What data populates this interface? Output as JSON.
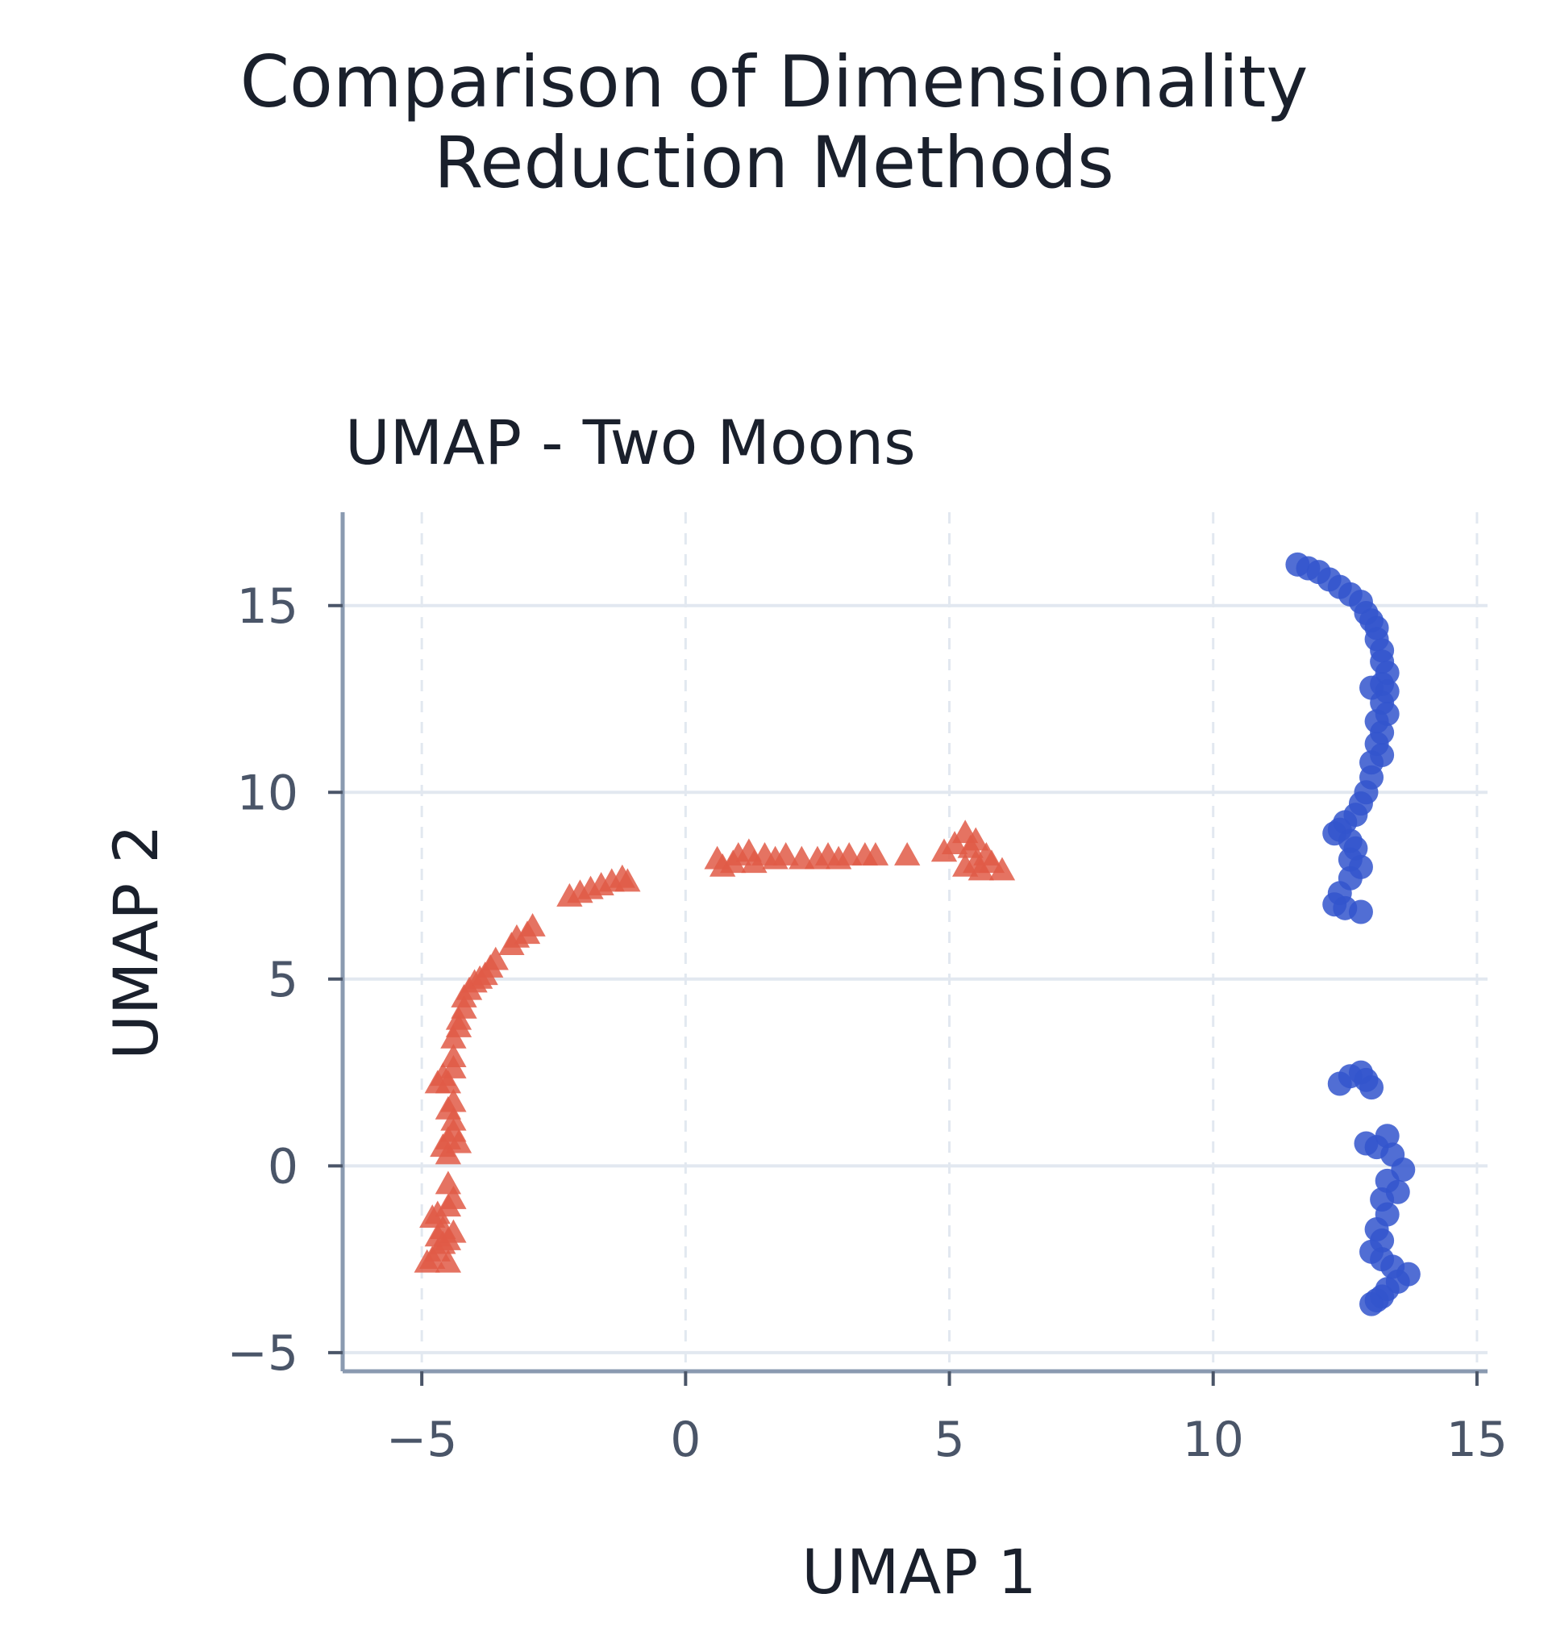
{
  "figure": {
    "title_line1": "Comparison of Dimensionality",
    "title_line2": "Reduction Methods"
  },
  "chart_data": {
    "type": "scatter",
    "title": "UMAP - Two Moons",
    "xlabel": "UMAP 1",
    "ylabel": "UMAP 2",
    "xlim": [
      -6.5,
      15.2
    ],
    "ylim": [
      -5.5,
      17.5
    ],
    "xticks": [
      -5,
      0,
      5,
      10,
      15
    ],
    "yticks": [
      -5,
      0,
      5,
      10,
      15
    ],
    "xtick_labels": [
      "−5",
      "0",
      "5",
      "10",
      "15"
    ],
    "ytick_labels": [
      "−5",
      "0",
      "5",
      "10",
      "15"
    ],
    "grid": true,
    "series": [
      {
        "marker": "triangle",
        "color": "#e05a47",
        "points": [
          [
            -4.9,
            -2.6
          ],
          [
            -4.8,
            -2.5
          ],
          [
            -4.7,
            -2.3
          ],
          [
            -4.6,
            -2.1
          ],
          [
            -4.5,
            -2.6
          ],
          [
            -4.7,
            -1.9
          ],
          [
            -4.6,
            -1.7
          ],
          [
            -4.5,
            -2.0
          ],
          [
            -4.4,
            -1.8
          ],
          [
            -4.8,
            -1.4
          ],
          [
            -4.7,
            -1.3
          ],
          [
            -4.5,
            -1.1
          ],
          [
            -4.4,
            -0.9
          ],
          [
            -4.5,
            -0.5
          ],
          [
            -4.5,
            0.3
          ],
          [
            -4.6,
            0.5
          ],
          [
            -4.5,
            0.7
          ],
          [
            -4.4,
            0.9
          ],
          [
            -4.3,
            0.6
          ],
          [
            -4.4,
            1.2
          ],
          [
            -4.5,
            1.5
          ],
          [
            -4.4,
            1.7
          ],
          [
            -4.7,
            2.2
          ],
          [
            -4.6,
            2.4
          ],
          [
            -4.5,
            2.2
          ],
          [
            -4.4,
            2.6
          ],
          [
            -4.4,
            2.9
          ],
          [
            -4.4,
            3.4
          ],
          [
            -4.3,
            3.7
          ],
          [
            -4.3,
            3.9
          ],
          [
            -4.2,
            4.2
          ],
          [
            -4.2,
            4.5
          ],
          [
            -4.1,
            4.7
          ],
          [
            -4.0,
            4.9
          ],
          [
            -3.9,
            5.0
          ],
          [
            -3.8,
            5.1
          ],
          [
            -3.7,
            5.3
          ],
          [
            -3.6,
            5.5
          ],
          [
            -3.3,
            5.9
          ],
          [
            -3.2,
            6.1
          ],
          [
            -3.0,
            6.2
          ],
          [
            -2.9,
            6.4
          ],
          [
            -2.2,
            7.2
          ],
          [
            -2.0,
            7.3
          ],
          [
            -1.8,
            7.4
          ],
          [
            -1.6,
            7.5
          ],
          [
            -1.4,
            7.6
          ],
          [
            -1.2,
            7.7
          ],
          [
            -1.1,
            7.6
          ],
          [
            0.6,
            8.2
          ],
          [
            0.7,
            8.0
          ],
          [
            0.9,
            8.1
          ],
          [
            1.0,
            8.3
          ],
          [
            1.2,
            8.4
          ],
          [
            1.3,
            8.1
          ],
          [
            1.5,
            8.3
          ],
          [
            1.7,
            8.2
          ],
          [
            1.9,
            8.3
          ],
          [
            2.2,
            8.2
          ],
          [
            2.5,
            8.2
          ],
          [
            2.7,
            8.3
          ],
          [
            2.9,
            8.2
          ],
          [
            3.1,
            8.3
          ],
          [
            3.4,
            8.3
          ],
          [
            3.6,
            8.3
          ],
          [
            4.2,
            8.3
          ],
          [
            4.9,
            8.4
          ],
          [
            5.1,
            8.6
          ],
          [
            5.3,
            8.9
          ],
          [
            5.4,
            8.5
          ],
          [
            5.5,
            8.7
          ],
          [
            5.3,
            8.0
          ],
          [
            5.6,
            7.9
          ],
          [
            5.8,
            8.1
          ],
          [
            6.0,
            7.9
          ],
          [
            5.7,
            8.3
          ],
          [
            5.5,
            8.1
          ]
        ]
      },
      {
        "marker": "circle",
        "color": "#3355cc",
        "points": [
          [
            11.6,
            16.1
          ],
          [
            11.8,
            16.0
          ],
          [
            12.0,
            15.9
          ],
          [
            12.2,
            15.7
          ],
          [
            12.4,
            15.5
          ],
          [
            12.6,
            15.3
          ],
          [
            12.8,
            15.1
          ],
          [
            12.9,
            14.8
          ],
          [
            13.0,
            14.6
          ],
          [
            13.1,
            14.4
          ],
          [
            13.1,
            14.1
          ],
          [
            13.2,
            13.8
          ],
          [
            13.2,
            13.5
          ],
          [
            13.3,
            13.2
          ],
          [
            13.2,
            12.9
          ],
          [
            13.0,
            12.8
          ],
          [
            13.3,
            12.7
          ],
          [
            13.2,
            12.4
          ],
          [
            13.3,
            12.1
          ],
          [
            13.1,
            11.9
          ],
          [
            13.2,
            11.6
          ],
          [
            13.1,
            11.3
          ],
          [
            13.2,
            11.0
          ],
          [
            13.0,
            10.8
          ],
          [
            13.0,
            10.4
          ],
          [
            12.9,
            10.0
          ],
          [
            12.8,
            9.7
          ],
          [
            12.7,
            9.4
          ],
          [
            12.5,
            9.2
          ],
          [
            12.4,
            9.0
          ],
          [
            12.3,
            8.9
          ],
          [
            12.6,
            8.7
          ],
          [
            12.7,
            8.5
          ],
          [
            12.6,
            8.2
          ],
          [
            12.8,
            8.0
          ],
          [
            12.6,
            7.7
          ],
          [
            12.4,
            7.3
          ],
          [
            12.3,
            7.0
          ],
          [
            12.5,
            6.9
          ],
          [
            12.8,
            6.8
          ],
          [
            12.4,
            2.2
          ],
          [
            12.6,
            2.4
          ],
          [
            12.8,
            2.5
          ],
          [
            12.9,
            2.3
          ],
          [
            13.0,
            2.1
          ],
          [
            12.9,
            0.6
          ],
          [
            13.1,
            0.5
          ],
          [
            13.3,
            0.8
          ],
          [
            13.4,
            0.3
          ],
          [
            13.6,
            -0.1
          ],
          [
            13.3,
            -0.4
          ],
          [
            13.5,
            -0.7
          ],
          [
            13.2,
            -0.9
          ],
          [
            13.3,
            -1.3
          ],
          [
            13.1,
            -1.7
          ],
          [
            13.2,
            -2.0
          ],
          [
            13.0,
            -2.3
          ],
          [
            13.2,
            -2.5
          ],
          [
            13.4,
            -2.7
          ],
          [
            13.7,
            -2.9
          ],
          [
            13.5,
            -3.1
          ],
          [
            13.3,
            -3.3
          ],
          [
            13.1,
            -3.6
          ],
          [
            13.0,
            -3.7
          ],
          [
            13.2,
            -3.5
          ]
        ]
      }
    ]
  }
}
